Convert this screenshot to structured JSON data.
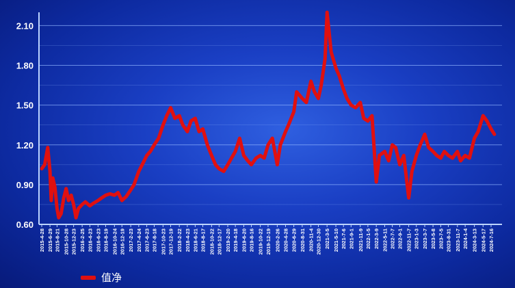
{
  "chart_data": {
    "type": "line",
    "title": "",
    "xlabel": "",
    "ylabel": "",
    "ylim": [
      0.6,
      2.2
    ],
    "yticks": [
      "0.60",
      "0.90",
      "1.20",
      "1.50",
      "1.80",
      "2.10"
    ],
    "grid": true,
    "legend_position": "bottom-left",
    "colors": {
      "line": "#e01010",
      "grid": "#8fb4ff",
      "axis": "#bcd4ff"
    },
    "xticks": [
      "2015-4-28",
      "2015-6-29",
      "2015-8-21",
      "2015-10-28",
      "2015-12-23",
      "2016-2-25",
      "2016-4-23",
      "2016-6-23",
      "2016-8-19",
      "2016-10-24",
      "2016-12-19",
      "2017-2-23",
      "2017-4-24",
      "2017-6-23",
      "2017-8-18",
      "2017-10-23",
      "2017-12-19",
      "2018-2-22",
      "2018-4-23",
      "2018-6-21",
      "2018-8-17",
      "2018-10-22",
      "2018-12-17",
      "2019-2-20",
      "2019-4-18",
      "2019-6-20",
      "2019-8-16",
      "2019-10-22",
      "2019-12-19",
      "2020-2-26",
      "2020-4-28",
      "2020-6-29",
      "2020-8-31",
      "2020-11-4",
      "2020-12-30",
      "2021-3-5",
      "2021-5-10",
      "2021-7-6",
      "2021-9-1",
      "2021-11-9",
      "2022-1-5",
      "2022-3-9",
      "2022-5-11",
      "2022-7-7",
      "2022-9-1",
      "2022-11-7",
      "2023-1-3",
      "2023-3-7",
      "2023-5-8",
      "2023-7-5",
      "2023-8-31",
      "2023-11-7",
      "2024-1-4",
      "2024-3-13",
      "2024-5-17",
      "2024-7-16"
    ],
    "series": [
      {
        "name": "值净",
        "x": [
          "2015-4-28",
          "2015-5-20",
          "2015-6-12",
          "2015-6-29",
          "2015-7-8",
          "2015-7-20",
          "2015-8-5",
          "2015-8-21",
          "2015-9-2",
          "2015-9-20",
          "2015-10-10",
          "2015-10-28",
          "2015-11-15",
          "2015-12-5",
          "2015-12-23",
          "2016-1-10",
          "2016-1-28",
          "2016-2-25",
          "2016-3-20",
          "2016-4-23",
          "2016-5-20",
          "2016-6-23",
          "2016-7-20",
          "2016-8-19",
          "2016-9-20",
          "2016-10-24",
          "2016-11-20",
          "2016-12-19",
          "2017-1-20",
          "2017-2-23",
          "2017-3-20",
          "2017-4-24",
          "2017-5-20",
          "2017-6-23",
          "2017-7-20",
          "2017-8-18",
          "2017-9-20",
          "2017-10-23",
          "2017-11-20",
          "2017-12-19",
          "2018-1-20",
          "2018-2-22",
          "2018-3-20",
          "2018-4-23",
          "2018-5-20",
          "2018-6-21",
          "2018-7-20",
          "2018-8-17",
          "2018-9-20",
          "2018-10-22",
          "2018-11-20",
          "2018-12-17",
          "2019-1-20",
          "2019-2-20",
          "2019-3-20",
          "2019-4-18",
          "2019-5-20",
          "2019-6-20",
          "2019-7-20",
          "2019-8-16",
          "2019-9-20",
          "2019-10-22",
          "2019-11-20",
          "2019-12-19",
          "2020-1-20",
          "2020-2-26",
          "2020-3-20",
          "2020-4-28",
          "2020-5-20",
          "2020-6-29",
          "2020-7-20",
          "2020-8-31",
          "2020-10-1",
          "2020-11-4",
          "2020-12-1",
          "2020-12-30",
          "2021-1-20",
          "2021-2-18",
          "2021-3-5",
          "2021-4-5",
          "2021-5-10",
          "2021-6-5",
          "2021-7-6",
          "2021-8-1",
          "2021-9-1",
          "2021-10-5",
          "2021-11-9",
          "2021-12-5",
          "2022-1-5",
          "2022-2-5",
          "2022-3-9",
          "2022-4-1",
          "2022-5-11",
          "2022-6-10",
          "2022-7-7",
          "2022-8-1",
          "2022-9-1",
          "2022-10-1",
          "2022-11-7",
          "2022-12-1",
          "2023-1-3",
          "2023-2-1",
          "2023-3-7",
          "2023-4-5",
          "2023-5-8",
          "2023-6-5",
          "2023-7-5",
          "2023-8-1",
          "2023-8-31",
          "2023-10-1",
          "2023-11-7",
          "2023-12-1",
          "2024-1-4",
          "2024-2-5",
          "2024-3-13",
          "2024-4-10",
          "2024-5-17",
          "2024-6-15",
          "2024-7-16",
          "2024-8-10"
        ],
        "values": [
          1.02,
          1.05,
          1.18,
          1.0,
          0.78,
          0.95,
          0.88,
          0.72,
          0.65,
          0.68,
          0.8,
          0.87,
          0.78,
          0.82,
          0.75,
          0.65,
          0.72,
          0.75,
          0.77,
          0.74,
          0.76,
          0.78,
          0.8,
          0.82,
          0.83,
          0.82,
          0.84,
          0.78,
          0.81,
          0.86,
          0.9,
          1.0,
          1.05,
          1.12,
          1.15,
          1.2,
          1.25,
          1.35,
          1.42,
          1.48,
          1.4,
          1.42,
          1.35,
          1.3,
          1.38,
          1.4,
          1.3,
          1.32,
          1.2,
          1.12,
          1.05,
          1.02,
          1.0,
          1.05,
          1.1,
          1.15,
          1.25,
          1.12,
          1.08,
          1.05,
          1.1,
          1.12,
          1.1,
          1.2,
          1.25,
          1.05,
          1.2,
          1.3,
          1.35,
          1.45,
          1.6,
          1.55,
          1.52,
          1.68,
          1.6,
          1.55,
          1.65,
          1.85,
          2.2,
          1.9,
          1.78,
          1.72,
          1.62,
          1.55,
          1.5,
          1.48,
          1.52,
          1.4,
          1.38,
          1.42,
          0.92,
          1.12,
          1.15,
          1.08,
          1.2,
          1.18,
          1.05,
          1.12,
          0.8,
          1.0,
          1.12,
          1.2,
          1.28,
          1.18,
          1.15,
          1.12,
          1.1,
          1.15,
          1.12,
          1.1,
          1.15,
          1.08,
          1.12,
          1.1,
          1.25,
          1.3,
          1.42,
          1.38,
          1.32,
          1.28
        ]
      }
    ]
  }
}
